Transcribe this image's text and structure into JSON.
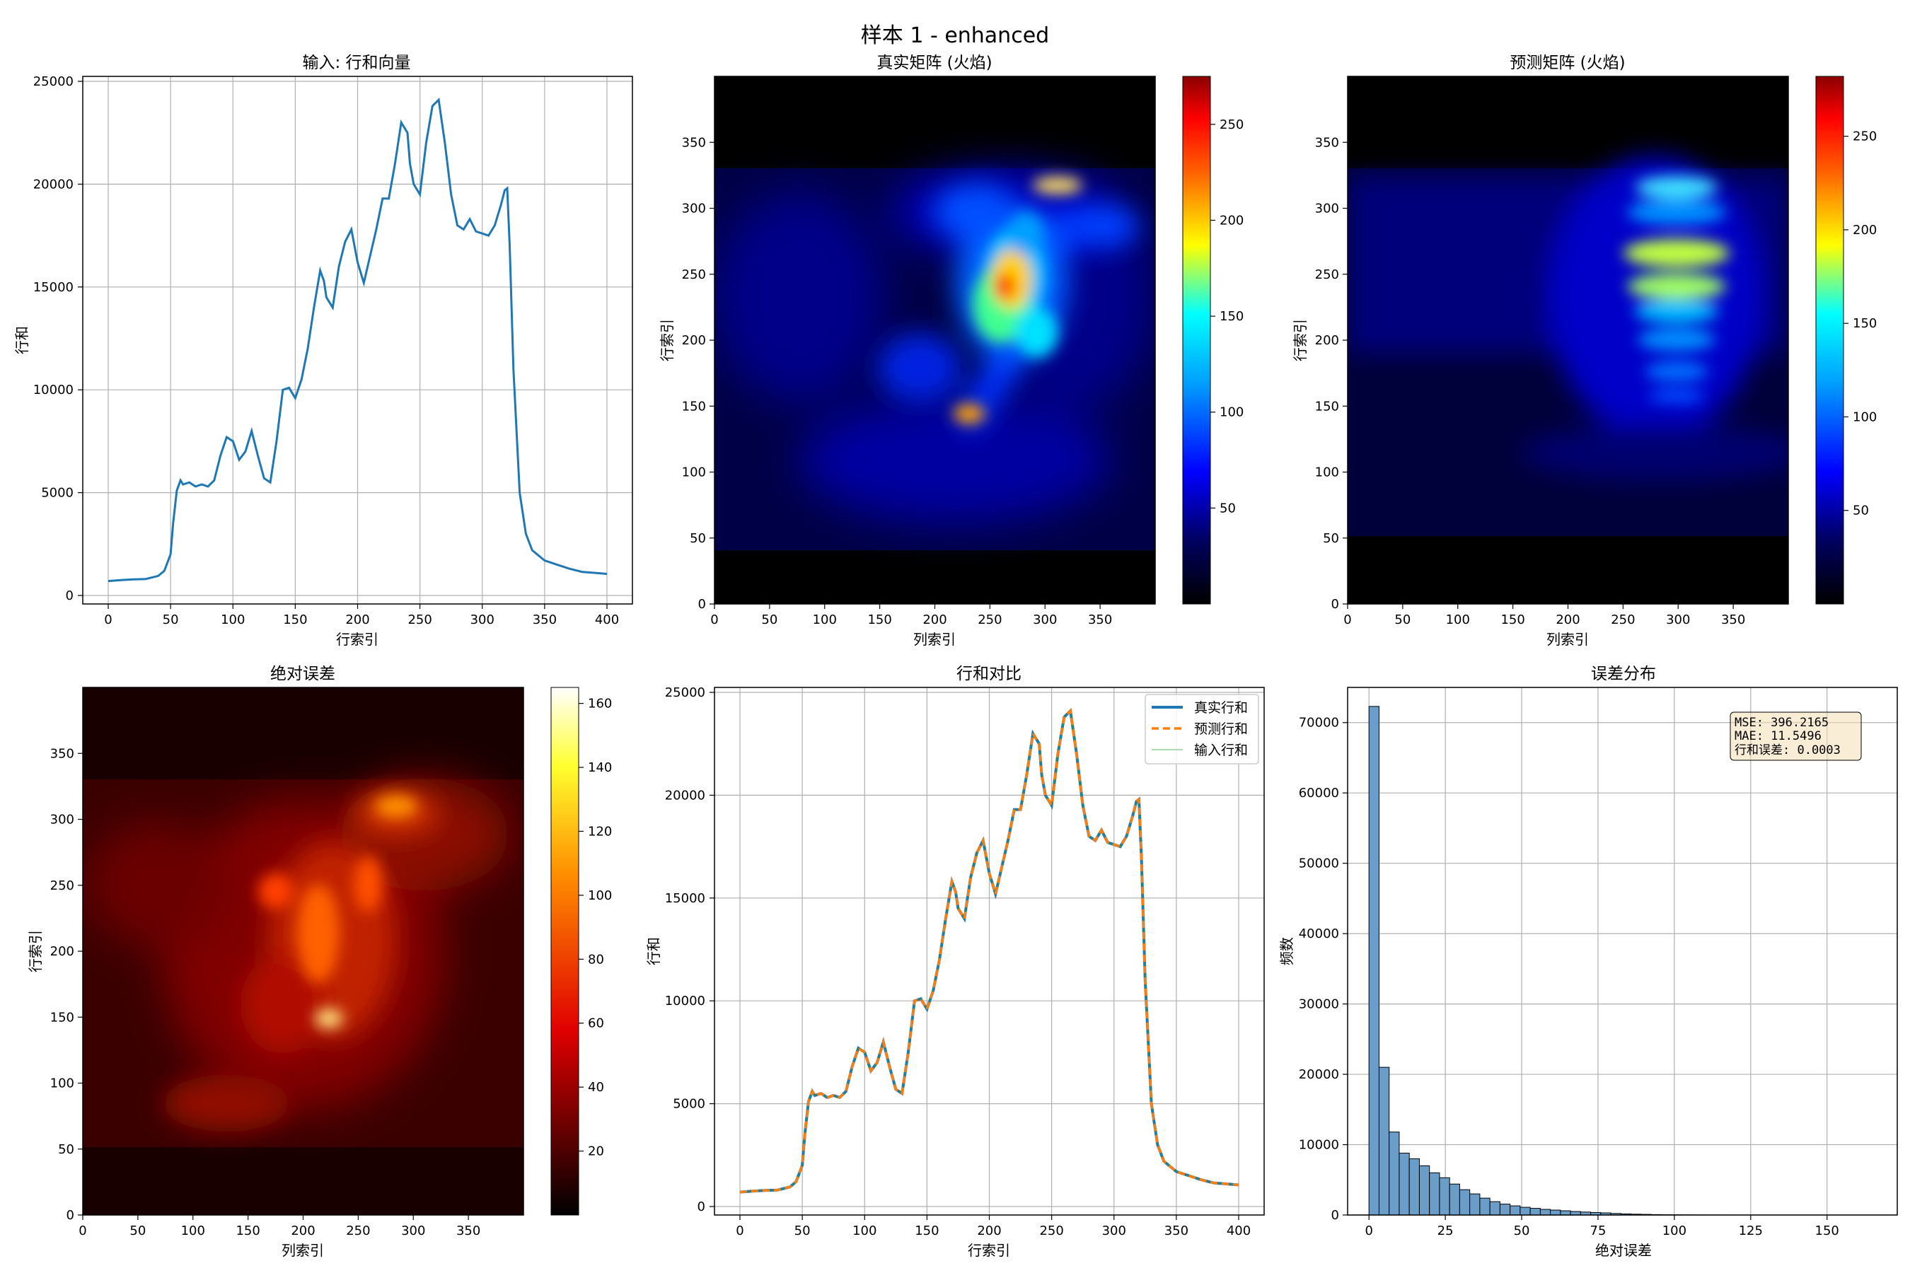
{
  "suptitle": "样本 1 - enhanced",
  "colors": {
    "line": "#1f77b4",
    "pred": "#ff7f0e",
    "input": "#2ca02c",
    "hist_fill": "#6a9ec9",
    "grid": "#b0b0b0"
  },
  "chart_data": [
    {
      "id": "input_rowsum",
      "type": "line",
      "title": "输入: 行和向量",
      "xlabel": "行索引",
      "ylabel": "行和",
      "xlim": [
        0,
        400
      ],
      "ylim": [
        0,
        25000
      ],
      "xticks": [
        0,
        50,
        100,
        150,
        200,
        250,
        300,
        350,
        400
      ],
      "yticks": [
        0,
        5000,
        10000,
        15000,
        20000,
        25000
      ],
      "grid": true,
      "x": [
        0,
        10,
        20,
        30,
        40,
        45,
        50,
        52,
        55,
        58,
        60,
        65,
        70,
        75,
        80,
        85,
        90,
        95,
        100,
        105,
        110,
        115,
        120,
        125,
        130,
        135,
        140,
        145,
        150,
        155,
        160,
        165,
        170,
        173,
        175,
        180,
        185,
        190,
        195,
        200,
        205,
        210,
        215,
        220,
        225,
        230,
        235,
        240,
        242,
        245,
        250,
        255,
        260,
        265,
        270,
        275,
        280,
        285,
        290,
        295,
        300,
        305,
        310,
        315,
        318,
        320,
        322,
        325,
        330,
        335,
        340,
        350,
        360,
        370,
        380,
        390,
        400
      ],
      "y": [
        700,
        750,
        780,
        800,
        950,
        1200,
        2000,
        3500,
        5100,
        5600,
        5400,
        5500,
        5300,
        5400,
        5300,
        5600,
        6800,
        7700,
        7500,
        6600,
        7000,
        8000,
        6800,
        5700,
        5500,
        7500,
        10000,
        10100,
        9600,
        10500,
        12000,
        14000,
        15800,
        15300,
        14500,
        14000,
        16000,
        17200,
        17800,
        16200,
        15200,
        16500,
        17800,
        19300,
        19300,
        21000,
        23000,
        22500,
        21000,
        20000,
        19500,
        22000,
        23800,
        24100,
        22000,
        19500,
        18000,
        17800,
        18300,
        17700,
        17600,
        17500,
        18000,
        19000,
        19700,
        19800,
        17000,
        11000,
        5000,
        3000,
        2200,
        1700,
        1500,
        1300,
        1150,
        1100,
        1050
      ]
    },
    {
      "id": "true_matrix",
      "type": "heatmap",
      "title": "真实矩阵 (火焰)",
      "xlabel": "列索引",
      "ylabel": "行索引",
      "colormap": "jet",
      "xticks": [
        0,
        50,
        100,
        150,
        200,
        250,
        300,
        350
      ],
      "yticks": [
        0,
        50,
        100,
        150,
        200,
        250,
        300,
        350
      ],
      "clim": [
        0,
        275
      ],
      "cbar_ticks": [
        50,
        100,
        150,
        200,
        250
      ]
    },
    {
      "id": "pred_matrix",
      "type": "heatmap",
      "title": "预测矩阵 (火焰)",
      "xlabel": "列索引",
      "ylabel": "行索引",
      "colormap": "jet",
      "xticks": [
        0,
        50,
        100,
        150,
        200,
        250,
        300,
        350
      ],
      "yticks": [
        0,
        50,
        100,
        150,
        200,
        250,
        300,
        350
      ],
      "clim": [
        0,
        282
      ],
      "cbar_ticks": [
        50,
        100,
        150,
        200,
        250
      ]
    },
    {
      "id": "abs_error",
      "type": "heatmap",
      "title": "绝对误差",
      "xlabel": "列索引",
      "ylabel": "行索引",
      "colormap": "hot",
      "xticks": [
        0,
        50,
        100,
        150,
        200,
        250,
        300,
        350
      ],
      "yticks": [
        0,
        50,
        100,
        150,
        200,
        250,
        300,
        350
      ],
      "clim": [
        0,
        165
      ],
      "cbar_ticks": [
        20,
        40,
        60,
        80,
        100,
        120,
        140,
        160
      ]
    },
    {
      "id": "rowsum_compare",
      "type": "line",
      "title": "行和对比",
      "xlabel": "行索引",
      "ylabel": "行和",
      "xlim": [
        0,
        400
      ],
      "ylim": [
        0,
        25000
      ],
      "xticks": [
        0,
        50,
        100,
        150,
        200,
        250,
        300,
        350,
        400
      ],
      "yticks": [
        0,
        5000,
        10000,
        15000,
        20000,
        25000
      ],
      "grid": true,
      "legend_position": "top-right",
      "series": [
        {
          "name": "真实行和",
          "style": "solid"
        },
        {
          "name": "预测行和",
          "style": "dashed"
        },
        {
          "name": "输入行和",
          "style": "thin"
        }
      ]
    },
    {
      "id": "error_hist",
      "type": "bar",
      "title": "误差分布",
      "xlabel": "绝对误差",
      "ylabel": "频数",
      "xlim": [
        -7,
        173
      ],
      "ylim": [
        0,
        75000
      ],
      "xticks": [
        0,
        25,
        50,
        75,
        100,
        125,
        150
      ],
      "yticks": [
        0,
        10000,
        20000,
        30000,
        40000,
        50000,
        60000,
        70000
      ],
      "grid": true,
      "bin_width": 3.3,
      "bin_start": 0,
      "counts": [
        72300,
        21000,
        11800,
        8800,
        8000,
        7000,
        6000,
        5300,
        4400,
        3600,
        3000,
        2400,
        1900,
        1550,
        1300,
        1100,
        950,
        800,
        700,
        600,
        500,
        420,
        350,
        300,
        220,
        160,
        120,
        90,
        60,
        40,
        30,
        20,
        15,
        10,
        8,
        5,
        4,
        3,
        2,
        2,
        1,
        1,
        1,
        1,
        1,
        1,
        1,
        0,
        0,
        0
      ],
      "annotation": [
        "MSE: 396.2165",
        "MAE: 11.5496",
        "行和误差: 0.0003"
      ]
    }
  ]
}
